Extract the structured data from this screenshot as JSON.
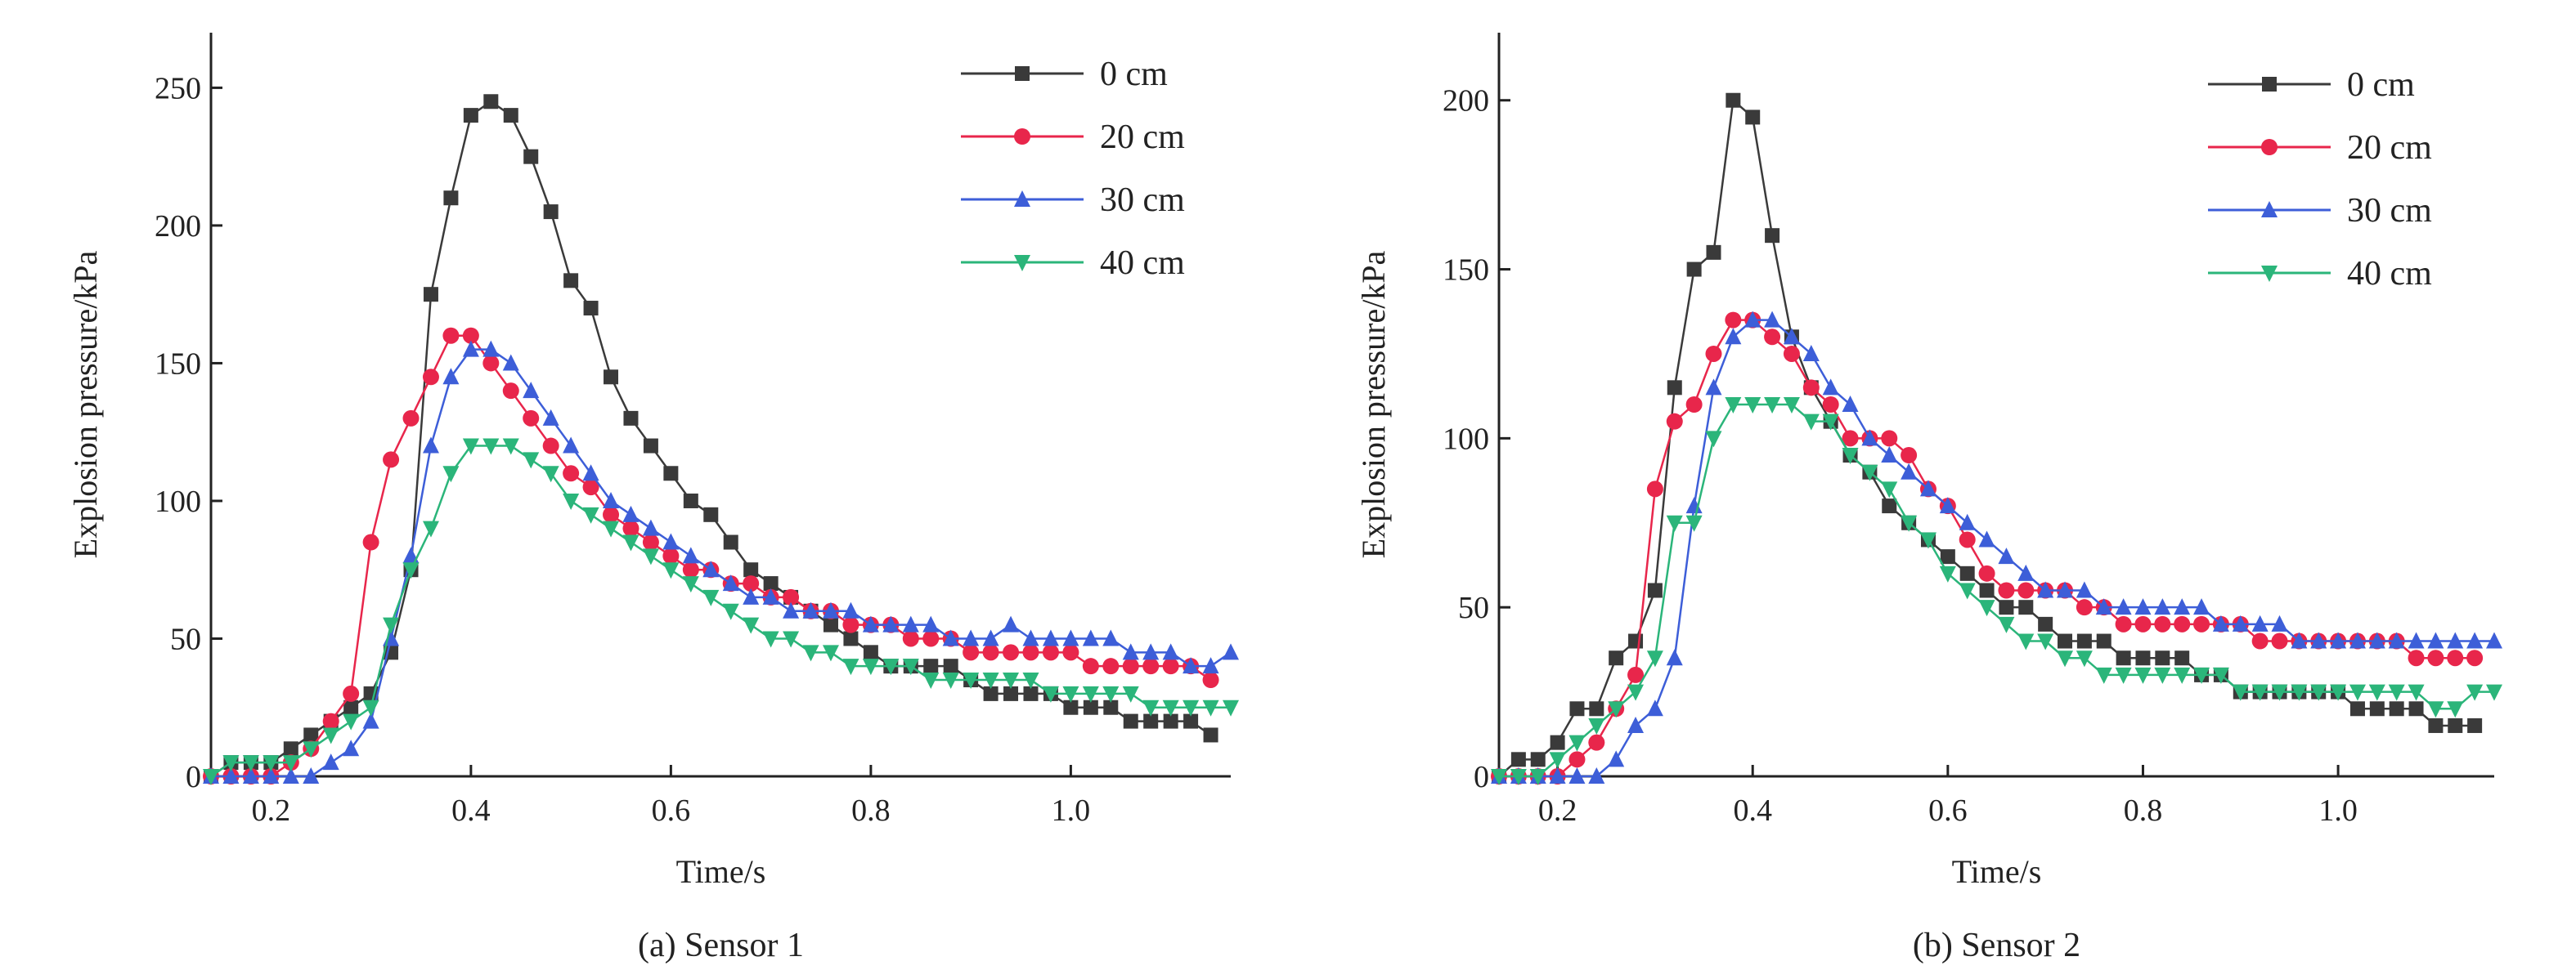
{
  "colors": {
    "0 cm": "#3a3a3a",
    "20 cm": "#e8264b",
    "30 cm": "#3d5ed8",
    "40 cm": "#2bb57a",
    "axis": "#222222"
  },
  "chart_data": [
    {
      "type": "line",
      "title": "",
      "caption": "(a) Sensor 1",
      "xlabel": "Time/s",
      "ylabel": "Explosion pressure/kPa",
      "xlim": [
        0.14,
        1.16
      ],
      "ylim": [
        0,
        270
      ],
      "xticks": [
        "0.2",
        "0.4",
        "0.6",
        "0.8",
        "1.0"
      ],
      "xtick_values": [
        0.2,
        0.4,
        0.6,
        0.8,
        1.0
      ],
      "yticks": [
        "0",
        "50",
        "100",
        "150",
        "200",
        "250"
      ],
      "ytick_values": [
        0,
        50,
        100,
        150,
        200,
        250
      ],
      "legend_position": "top-right",
      "series": [
        {
          "name": "0 cm",
          "marker": "square",
          "x": [
            0.14,
            0.16,
            0.18,
            0.2,
            0.22,
            0.24,
            0.26,
            0.28,
            0.3,
            0.32,
            0.34,
            0.36,
            0.38,
            0.4,
            0.42,
            0.44,
            0.46,
            0.48,
            0.5,
            0.52,
            0.54,
            0.56,
            0.58,
            0.6,
            0.62,
            0.64,
            0.66,
            0.68,
            0.7,
            0.72,
            0.74,
            0.76,
            0.78,
            0.8,
            0.82,
            0.84,
            0.86,
            0.88,
            0.9,
            0.92,
            0.94,
            0.96,
            0.98,
            1.0,
            1.02,
            1.04,
            1.06,
            1.08,
            1.1,
            1.12,
            1.14
          ],
          "y": [
            0,
            5,
            5,
            5,
            10,
            15,
            20,
            25,
            30,
            45,
            75,
            175,
            210,
            240,
            245,
            240,
            225,
            205,
            180,
            170,
            145,
            130,
            120,
            110,
            100,
            95,
            85,
            75,
            70,
            65,
            60,
            55,
            50,
            45,
            40,
            40,
            40,
            40,
            35,
            30,
            30,
            30,
            30,
            25,
            25,
            25,
            20,
            20,
            20,
            20,
            15
          ]
        },
        {
          "name": "20 cm",
          "marker": "circle",
          "x": [
            0.14,
            0.16,
            0.18,
            0.2,
            0.22,
            0.24,
            0.26,
            0.28,
            0.3,
            0.32,
            0.34,
            0.36,
            0.38,
            0.4,
            0.42,
            0.44,
            0.46,
            0.48,
            0.5,
            0.52,
            0.54,
            0.56,
            0.58,
            0.6,
            0.62,
            0.64,
            0.66,
            0.68,
            0.7,
            0.72,
            0.74,
            0.76,
            0.78,
            0.8,
            0.82,
            0.84,
            0.86,
            0.88,
            0.9,
            0.92,
            0.94,
            0.96,
            0.98,
            1.0,
            1.02,
            1.04,
            1.06,
            1.08,
            1.1,
            1.12,
            1.14
          ],
          "y": [
            0,
            0,
            0,
            0,
            5,
            10,
            20,
            30,
            85,
            115,
            130,
            145,
            160,
            160,
            150,
            140,
            130,
            120,
            110,
            105,
            95,
            90,
            85,
            80,
            75,
            75,
            70,
            70,
            65,
            65,
            60,
            60,
            55,
            55,
            55,
            50,
            50,
            50,
            45,
            45,
            45,
            45,
            45,
            45,
            40,
            40,
            40,
            40,
            40,
            40,
            35
          ]
        },
        {
          "name": "30 cm",
          "marker": "triangle-up",
          "x": [
            0.14,
            0.16,
            0.18,
            0.2,
            0.22,
            0.24,
            0.26,
            0.28,
            0.3,
            0.32,
            0.34,
            0.36,
            0.38,
            0.4,
            0.42,
            0.44,
            0.46,
            0.48,
            0.5,
            0.52,
            0.54,
            0.56,
            0.58,
            0.6,
            0.62,
            0.64,
            0.66,
            0.68,
            0.7,
            0.72,
            0.74,
            0.76,
            0.78,
            0.8,
            0.82,
            0.84,
            0.86,
            0.88,
            0.9,
            0.92,
            0.94,
            0.96,
            0.98,
            1.0,
            1.02,
            1.04,
            1.06,
            1.08,
            1.1,
            1.12,
            1.14,
            1.16
          ],
          "y": [
            0,
            0,
            0,
            0,
            0,
            0,
            5,
            10,
            20,
            50,
            80,
            120,
            145,
            155,
            155,
            150,
            140,
            130,
            120,
            110,
            100,
            95,
            90,
            85,
            80,
            75,
            70,
            65,
            65,
            60,
            60,
            60,
            60,
            55,
            55,
            55,
            55,
            50,
            50,
            50,
            55,
            50,
            50,
            50,
            50,
            50,
            45,
            45,
            45,
            40,
            40,
            45
          ]
        },
        {
          "name": "40 cm",
          "marker": "triangle-down",
          "x": [
            0.14,
            0.16,
            0.18,
            0.2,
            0.22,
            0.24,
            0.26,
            0.28,
            0.3,
            0.32,
            0.34,
            0.36,
            0.38,
            0.4,
            0.42,
            0.44,
            0.46,
            0.48,
            0.5,
            0.52,
            0.54,
            0.56,
            0.58,
            0.6,
            0.62,
            0.64,
            0.66,
            0.68,
            0.7,
            0.72,
            0.74,
            0.76,
            0.78,
            0.8,
            0.82,
            0.84,
            0.86,
            0.88,
            0.9,
            0.92,
            0.94,
            0.96,
            0.98,
            1.0,
            1.02,
            1.04,
            1.06,
            1.08,
            1.1,
            1.12,
            1.14,
            1.16
          ],
          "y": [
            0,
            5,
            5,
            5,
            5,
            10,
            15,
            20,
            25,
            55,
            75,
            90,
            110,
            120,
            120,
            120,
            115,
            110,
            100,
            95,
            90,
            85,
            80,
            75,
            70,
            65,
            60,
            55,
            50,
            50,
            45,
            45,
            40,
            40,
            40,
            40,
            35,
            35,
            35,
            35,
            35,
            35,
            30,
            30,
            30,
            30,
            30,
            25,
            25,
            25,
            25,
            25
          ]
        }
      ]
    },
    {
      "type": "line",
      "title": "",
      "caption": "(b) Sensor 2",
      "xlabel": "Time/s",
      "ylabel": "Explosion pressure/kPa",
      "xlim": [
        0.14,
        1.16
      ],
      "ylim": [
        0,
        220
      ],
      "xticks": [
        "0.2",
        "0.4",
        "0.6",
        "0.8",
        "1.0"
      ],
      "xtick_values": [
        0.2,
        0.4,
        0.6,
        0.8,
        1.0
      ],
      "yticks": [
        "0",
        "50",
        "100",
        "150",
        "200"
      ],
      "ytick_values": [
        0,
        50,
        100,
        150,
        200
      ],
      "legend_position": "top-right",
      "series": [
        {
          "name": "0 cm",
          "marker": "square",
          "x": [
            0.14,
            0.16,
            0.18,
            0.2,
            0.22,
            0.24,
            0.26,
            0.28,
            0.3,
            0.32,
            0.34,
            0.36,
            0.38,
            0.4,
            0.42,
            0.44,
            0.46,
            0.48,
            0.5,
            0.52,
            0.54,
            0.56,
            0.58,
            0.6,
            0.62,
            0.64,
            0.66,
            0.68,
            0.7,
            0.72,
            0.74,
            0.76,
            0.78,
            0.8,
            0.82,
            0.84,
            0.86,
            0.88,
            0.9,
            0.92,
            0.94,
            0.96,
            0.98,
            1.0,
            1.02,
            1.04,
            1.06,
            1.08,
            1.1,
            1.12,
            1.14
          ],
          "y": [
            0,
            5,
            5,
            10,
            20,
            20,
            35,
            40,
            55,
            115,
            150,
            155,
            200,
            195,
            160,
            130,
            115,
            105,
            95,
            90,
            80,
            75,
            70,
            65,
            60,
            55,
            50,
            50,
            45,
            40,
            40,
            40,
            35,
            35,
            35,
            35,
            30,
            30,
            25,
            25,
            25,
            25,
            25,
            25,
            20,
            20,
            20,
            20,
            15,
            15,
            15
          ]
        },
        {
          "name": "20 cm",
          "marker": "circle",
          "x": [
            0.14,
            0.16,
            0.18,
            0.2,
            0.22,
            0.24,
            0.26,
            0.28,
            0.3,
            0.32,
            0.34,
            0.36,
            0.38,
            0.4,
            0.42,
            0.44,
            0.46,
            0.48,
            0.5,
            0.52,
            0.54,
            0.56,
            0.58,
            0.6,
            0.62,
            0.64,
            0.66,
            0.68,
            0.7,
            0.72,
            0.74,
            0.76,
            0.78,
            0.8,
            0.82,
            0.84,
            0.86,
            0.88,
            0.9,
            0.92,
            0.94,
            0.96,
            0.98,
            1.0,
            1.02,
            1.04,
            1.06,
            1.08,
            1.1,
            1.12,
            1.14
          ],
          "y": [
            0,
            0,
            0,
            0,
            5,
            10,
            20,
            30,
            85,
            105,
            110,
            125,
            135,
            135,
            130,
            125,
            115,
            110,
            100,
            100,
            100,
            95,
            85,
            80,
            70,
            60,
            55,
            55,
            55,
            55,
            50,
            50,
            45,
            45,
            45,
            45,
            45,
            45,
            45,
            40,
            40,
            40,
            40,
            40,
            40,
            40,
            40,
            35,
            35,
            35,
            35
          ]
        },
        {
          "name": "30 cm",
          "marker": "triangle-up",
          "x": [
            0.14,
            0.16,
            0.18,
            0.2,
            0.22,
            0.24,
            0.26,
            0.28,
            0.3,
            0.32,
            0.34,
            0.36,
            0.38,
            0.4,
            0.42,
            0.44,
            0.46,
            0.48,
            0.5,
            0.52,
            0.54,
            0.56,
            0.58,
            0.6,
            0.62,
            0.64,
            0.66,
            0.68,
            0.7,
            0.72,
            0.74,
            0.76,
            0.78,
            0.8,
            0.82,
            0.84,
            0.86,
            0.88,
            0.9,
            0.92,
            0.94,
            0.96,
            0.98,
            1.0,
            1.02,
            1.04,
            1.06,
            1.08,
            1.1,
            1.12,
            1.14,
            1.16
          ],
          "y": [
            0,
            0,
            0,
            0,
            0,
            0,
            5,
            15,
            20,
            35,
            80,
            115,
            130,
            135,
            135,
            130,
            125,
            115,
            110,
            100,
            95,
            90,
            85,
            80,
            75,
            70,
            65,
            60,
            55,
            55,
            55,
            50,
            50,
            50,
            50,
            50,
            50,
            45,
            45,
            45,
            45,
            40,
            40,
            40,
            40,
            40,
            40,
            40,
            40,
            40,
            40,
            40
          ]
        },
        {
          "name": "40 cm",
          "marker": "triangle-down",
          "x": [
            0.14,
            0.16,
            0.18,
            0.2,
            0.22,
            0.24,
            0.26,
            0.28,
            0.3,
            0.32,
            0.34,
            0.36,
            0.38,
            0.4,
            0.42,
            0.44,
            0.46,
            0.48,
            0.5,
            0.52,
            0.54,
            0.56,
            0.58,
            0.6,
            0.62,
            0.64,
            0.66,
            0.68,
            0.7,
            0.72,
            0.74,
            0.76,
            0.78,
            0.8,
            0.82,
            0.84,
            0.86,
            0.88,
            0.9,
            0.92,
            0.94,
            0.96,
            0.98,
            1.0,
            1.02,
            1.04,
            1.06,
            1.08,
            1.1,
            1.12,
            1.14,
            1.16
          ],
          "y": [
            0,
            0,
            0,
            5,
            10,
            15,
            20,
            25,
            35,
            75,
            75,
            100,
            110,
            110,
            110,
            110,
            105,
            105,
            95,
            90,
            85,
            75,
            70,
            60,
            55,
            50,
            45,
            40,
            40,
            35,
            35,
            30,
            30,
            30,
            30,
            30,
            30,
            30,
            25,
            25,
            25,
            25,
            25,
            25,
            25,
            25,
            25,
            25,
            20,
            20,
            25,
            25
          ]
        }
      ]
    }
  ]
}
